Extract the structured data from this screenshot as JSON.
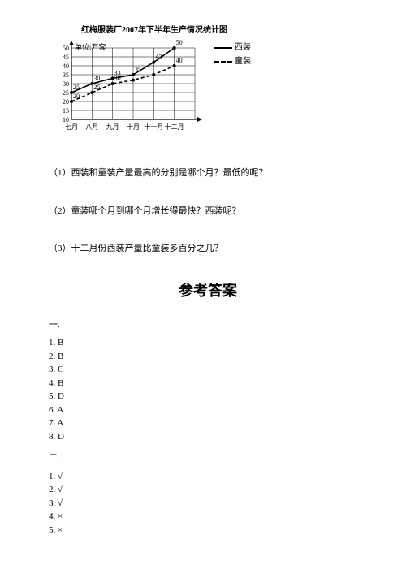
{
  "chart": {
    "title": "红梅服装厂2007年下半年生产情况统计图",
    "unit_label": "单位:万套",
    "legend": {
      "series1": "西装",
      "series2": "童装"
    },
    "x_labels": [
      "七月",
      "八月",
      "九月",
      "十月",
      "十一月",
      "十二月"
    ],
    "y_ticks": [
      10,
      15,
      20,
      25,
      30,
      35,
      40,
      45,
      50
    ],
    "plot": {
      "width": 190,
      "height": 110,
      "x_origin": 28,
      "y_origin": 100,
      "grid_cols": 6,
      "grid_rows": 9
    },
    "series1_pts": [
      [
        0,
        25
      ],
      [
        1,
        30
      ],
      [
        2,
        33
      ],
      [
        3,
        35
      ],
      [
        4,
        42
      ],
      [
        5,
        50
      ]
    ],
    "series2_pts": [
      [
        0,
        20
      ],
      [
        1,
        25
      ],
      [
        2,
        30
      ],
      [
        3,
        32
      ],
      [
        4,
        35
      ],
      [
        5,
        40
      ]
    ],
    "pt_labels1": [
      "25",
      "30",
      "33",
      "35",
      "42",
      "50"
    ],
    "pt_labels2": [
      "20",
      "25",
      "30",
      "",
      "",
      "40"
    ]
  },
  "questions": {
    "q1": "（1）西装和童装产量最高的分别是哪个月？最低的呢？",
    "q2": "（2）童装哪个月到哪个月增长得最快？西装呢？",
    "q3": "（3）十二月份西装产量比童装多百分之几？"
  },
  "answers": {
    "title": "参考答案",
    "sec1": "一.",
    "a1": [
      "1. B",
      "2. B",
      "3. C",
      "4. B",
      "5. D",
      "6. A",
      "7. A",
      "8. D"
    ],
    "sec2": "二.",
    "a2": [
      "1. √",
      "2. √",
      "3. √",
      "4. ×",
      "5. ×"
    ]
  }
}
